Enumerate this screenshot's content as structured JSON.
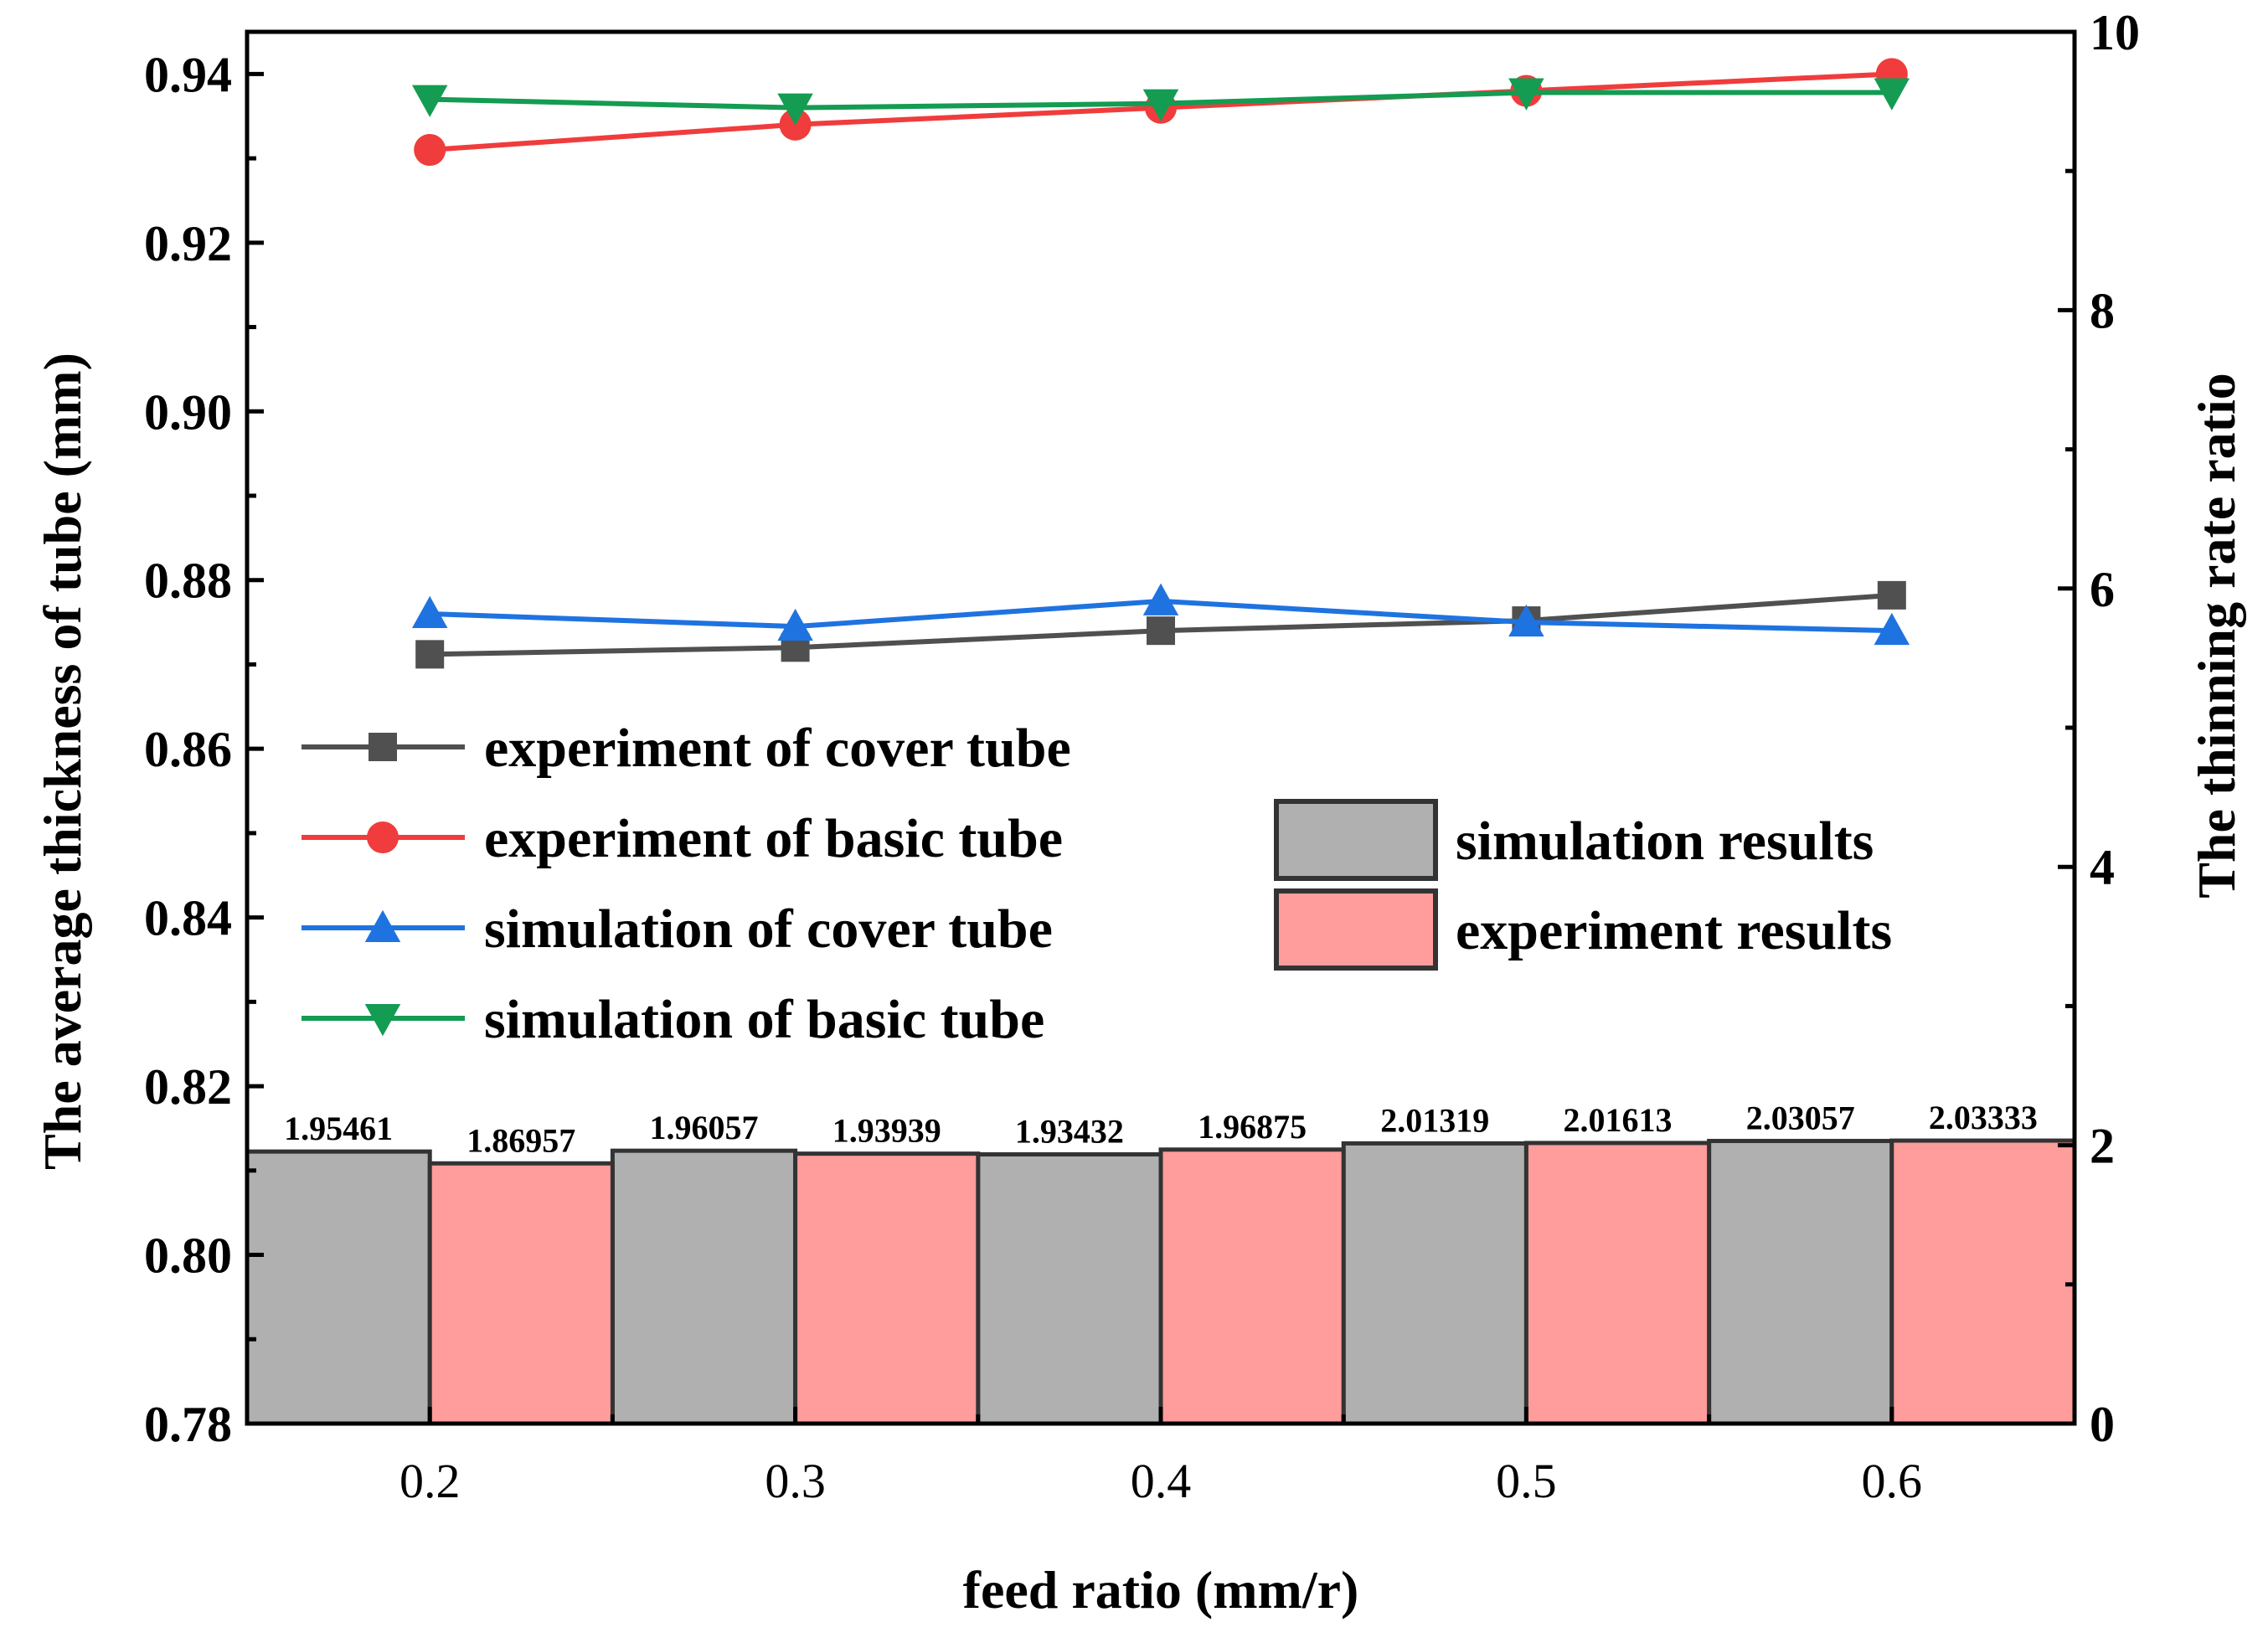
{
  "chart_data": {
    "type": "bar+line",
    "title": "",
    "xlabel": "feed ratio (mm/r)",
    "ylabel_left": "The average thickness of  tube (mm)",
    "ylabel_right": "The thinning rate ratio",
    "x": [
      0.2,
      0.3,
      0.4,
      0.5,
      0.6
    ],
    "x_tick_labels": [
      "0.2",
      "0.3",
      "0.4",
      "0.5",
      "0.6"
    ],
    "xlim": [
      0.15,
      0.65
    ],
    "ylim_left": [
      0.78,
      0.945
    ],
    "ylim_right": [
      0,
      10
    ],
    "left_ticks": [
      "0.78",
      "0.80",
      "0.82",
      "0.84",
      "0.86",
      "0.88",
      "0.90",
      "0.92",
      "0.94"
    ],
    "right_ticks": [
      "0",
      "2",
      "4",
      "6",
      "8",
      "10"
    ],
    "grid": false,
    "legend_position": "center-left",
    "line_series": [
      {
        "name": "experiment of cover tube",
        "color": "#505050",
        "marker": "square",
        "axis": "left",
        "values": [
          0.8712,
          0.872,
          0.874,
          0.8752,
          0.8782
        ]
      },
      {
        "name": "experiment of basic tube",
        "color": "#f03c3c",
        "marker": "circle",
        "axis": "left",
        "values": [
          0.931,
          0.934,
          0.936,
          0.938,
          0.94
        ]
      },
      {
        "name": "simulation  of cover tube",
        "color": "#1f73e0",
        "marker": "triangle-up",
        "axis": "left",
        "values": [
          0.876,
          0.8745,
          0.8775,
          0.875,
          0.874
        ]
      },
      {
        "name": "simulation  of basic tube",
        "color": "#139c52",
        "marker": "triangle-down",
        "axis": "left",
        "values": [
          0.937,
          0.936,
          0.9365,
          0.9378,
          0.9378
        ]
      }
    ],
    "bar_series": [
      {
        "name": "simulation  results",
        "color": "#b0b0b0",
        "axis": "right",
        "values": [
          1.95461,
          1.96057,
          1.93432,
          2.01319,
          2.03057
        ],
        "labels": [
          "1.95461",
          "1.96057",
          "1.93432",
          "2.01319",
          "2.03057"
        ]
      },
      {
        "name": "experiment  results",
        "color": "#ff9c9c",
        "axis": "right",
        "values": [
          1.86957,
          1.93939,
          1.96875,
          2.01613,
          2.03333
        ],
        "labels": [
          "1.86957",
          "1.93939",
          "1.96875",
          "2.01613",
          "2.03333"
        ]
      }
    ]
  }
}
